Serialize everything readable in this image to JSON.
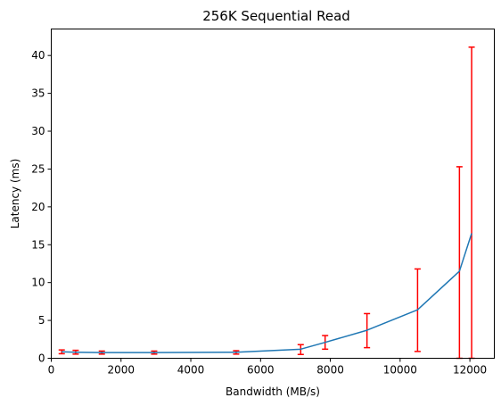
{
  "chart_data": {
    "type": "line",
    "title": "256K  Sequential Read",
    "xlabel": "Bandwidth (MB/s)",
    "ylabel": "Latency (ms)",
    "xlim": [
      0,
      12700
    ],
    "ylim": [
      0,
      43.5
    ],
    "x_ticks": [
      0,
      2000,
      4000,
      6000,
      8000,
      10000,
      12000
    ],
    "y_ticks": [
      0,
      5,
      10,
      15,
      20,
      25,
      30,
      35,
      40
    ],
    "grid": false,
    "colors": {
      "line": "#1f77b4",
      "errorbar": "#ff0000",
      "axes": "#000000"
    },
    "series": [
      {
        "x": [
          300,
          700,
          1450,
          2950,
          5300,
          7150,
          7850,
          9050,
          10500,
          11700,
          12050
        ],
        "y": [
          0.85,
          0.8,
          0.75,
          0.75,
          0.8,
          1.2,
          2.1,
          3.7,
          6.4,
          11.5,
          16.5
        ],
        "err_low": [
          0.6,
          0.55,
          0.55,
          0.55,
          0.55,
          0.5,
          1.2,
          1.4,
          0.9,
          0.0,
          0.0
        ],
        "err_high": [
          1.1,
          1.05,
          0.95,
          0.95,
          1.0,
          1.8,
          3.0,
          5.9,
          11.8,
          25.3,
          41.1
        ]
      }
    ]
  }
}
